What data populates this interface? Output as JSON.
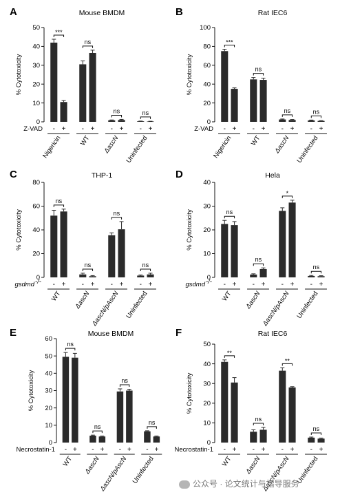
{
  "watermark": "公众号 · 论文统计与指导服务",
  "chart_data": [
    {
      "panel": "A",
      "type": "bar",
      "title": "Mouse BMDM",
      "ylabel": "% Cytotoxicity",
      "ylim": [
        0,
        50
      ],
      "yticks": [
        0,
        10,
        20,
        30,
        40,
        50
      ],
      "condition_label": "Z-VAD",
      "categories": [
        "Nigericin",
        "WT",
        "ΔascN",
        "Uninfected"
      ],
      "italic_groups": [
        false,
        false,
        true,
        false
      ],
      "pm": [
        "-",
        "+"
      ],
      "values": [
        [
          42,
          10.5
        ],
        [
          30.5,
          36.5
        ],
        [
          0.8,
          1.0
        ],
        [
          0.3,
          0.2
        ]
      ],
      "errors": [
        [
          1.8,
          0.8
        ],
        [
          1.8,
          1.5
        ],
        [
          0.2,
          0.3
        ],
        [
          0.1,
          0.1
        ]
      ],
      "significance": [
        "***",
        "ns",
        "ns",
        "ns"
      ]
    },
    {
      "panel": "B",
      "type": "bar",
      "title": "Rat IEC6",
      "ylabel": "% Cytotoxicity",
      "ylim": [
        0,
        100
      ],
      "yticks": [
        0,
        20,
        40,
        60,
        80,
        100
      ],
      "condition_label": "Z-VAD",
      "categories": [
        "Nigericin",
        "WT",
        "ΔascN",
        "Uninfected"
      ],
      "italic_groups": [
        false,
        false,
        true,
        false
      ],
      "pm": [
        "-",
        "+"
      ],
      "values": [
        [
          75,
          35
        ],
        [
          45,
          44.5
        ],
        [
          2.5,
          2.0
        ],
        [
          1.5,
          1.0
        ]
      ],
      "errors": [
        [
          2.0,
          1.0
        ],
        [
          2.0,
          1.8
        ],
        [
          0.5,
          0.5
        ],
        [
          0.4,
          0.3
        ]
      ],
      "significance": [
        "***",
        "ns",
        "ns",
        "ns"
      ]
    },
    {
      "panel": "C",
      "type": "bar",
      "title": "THP-1",
      "ylabel": "% Cytotoxicity",
      "ylim": [
        0,
        80
      ],
      "yticks": [
        0,
        20,
        40,
        60,
        80
      ],
      "condition_label": "gsdmd",
      "condition_sup": "-/-",
      "categories": [
        "WT",
        "ΔascN",
        "ΔascN/pAscN",
        "Uninfected"
      ],
      "italic_groups": [
        false,
        true,
        true,
        false
      ],
      "pm": [
        "-",
        "+"
      ],
      "values": [
        [
          52,
          55.5
        ],
        [
          2.5,
          1.0
        ],
        [
          35.5,
          40.5
        ],
        [
          1.5,
          2.5
        ]
      ],
      "errors": [
        [
          4.5,
          2.0
        ],
        [
          1.0,
          0.5
        ],
        [
          2.0,
          6.5
        ],
        [
          0.5,
          1.0
        ]
      ],
      "significance": [
        "ns",
        "ns",
        "ns",
        "ns"
      ]
    },
    {
      "panel": "D",
      "type": "bar",
      "title": "Hela",
      "ylabel": "% Cytotoxicity",
      "ylim": [
        0,
        40
      ],
      "yticks": [
        0,
        10,
        20,
        30,
        40
      ],
      "condition_label": "gsdmd",
      "condition_sup": "-/-",
      "categories": [
        "WT",
        "ΔascN",
        "ΔascN/pAscN",
        "Uninfected"
      ],
      "italic_groups": [
        false,
        true,
        true,
        false
      ],
      "pm": [
        "-",
        "+"
      ],
      "values": [
        [
          22.5,
          22
        ],
        [
          1.2,
          3.5
        ],
        [
          28,
          31.5
        ],
        [
          0.6,
          0.5
        ]
      ],
      "errors": [
        [
          1.5,
          1.5
        ],
        [
          0.3,
          0.5
        ],
        [
          1.3,
          1.0
        ],
        [
          0.2,
          0.2
        ]
      ],
      "significance": [
        "ns",
        "ns",
        "*",
        "ns"
      ]
    },
    {
      "panel": "E",
      "type": "bar",
      "title": "Mouse BMDM",
      "ylabel": "% Cytotoxicity",
      "ylim": [
        0,
        60
      ],
      "yticks": [
        0,
        10,
        20,
        30,
        40,
        50,
        60
      ],
      "condition_label": "Necrostatin-1",
      "categories": [
        "WT",
        "ΔascN",
        "ΔascN/pAscN",
        "Uninfected"
      ],
      "italic_groups": [
        false,
        true,
        true,
        false
      ],
      "pm": [
        "-",
        "+"
      ],
      "values": [
        [
          49.5,
          49
        ],
        [
          4,
          3.5
        ],
        [
          29.5,
          30
        ],
        [
          6.5,
          3.5
        ]
      ],
      "errors": [
        [
          2.5,
          2.5
        ],
        [
          0.3,
          0.3
        ],
        [
          1.5,
          0.8
        ],
        [
          0.3,
          0.3
        ]
      ],
      "significance": [
        "ns",
        "ns",
        "ns",
        "ns"
      ]
    },
    {
      "panel": "F",
      "type": "bar",
      "title": "Rat IEC6",
      "ylabel": "% Cytotoxicity",
      "ylim": [
        0,
        50
      ],
      "yticks": [
        0,
        10,
        20,
        30,
        40,
        50
      ],
      "condition_label": "Necrostatin-1",
      "categories": [
        "WT",
        "ΔascN",
        "ΔascN/pAscN",
        "Uninfected"
      ],
      "italic_groups": [
        false,
        true,
        true,
        false
      ],
      "pm": [
        "-",
        "+"
      ],
      "values": [
        [
          41,
          30.5
        ],
        [
          5.5,
          6.5
        ],
        [
          36.5,
          28
        ],
        [
          2.5,
          2
        ]
      ],
      "errors": [
        [
          1.0,
          2.5
        ],
        [
          1.0,
          1.2
        ],
        [
          1.5,
          0.4
        ],
        [
          0.3,
          0.3
        ]
      ],
      "significance": [
        "**",
        "ns",
        "**",
        "ns"
      ]
    }
  ]
}
